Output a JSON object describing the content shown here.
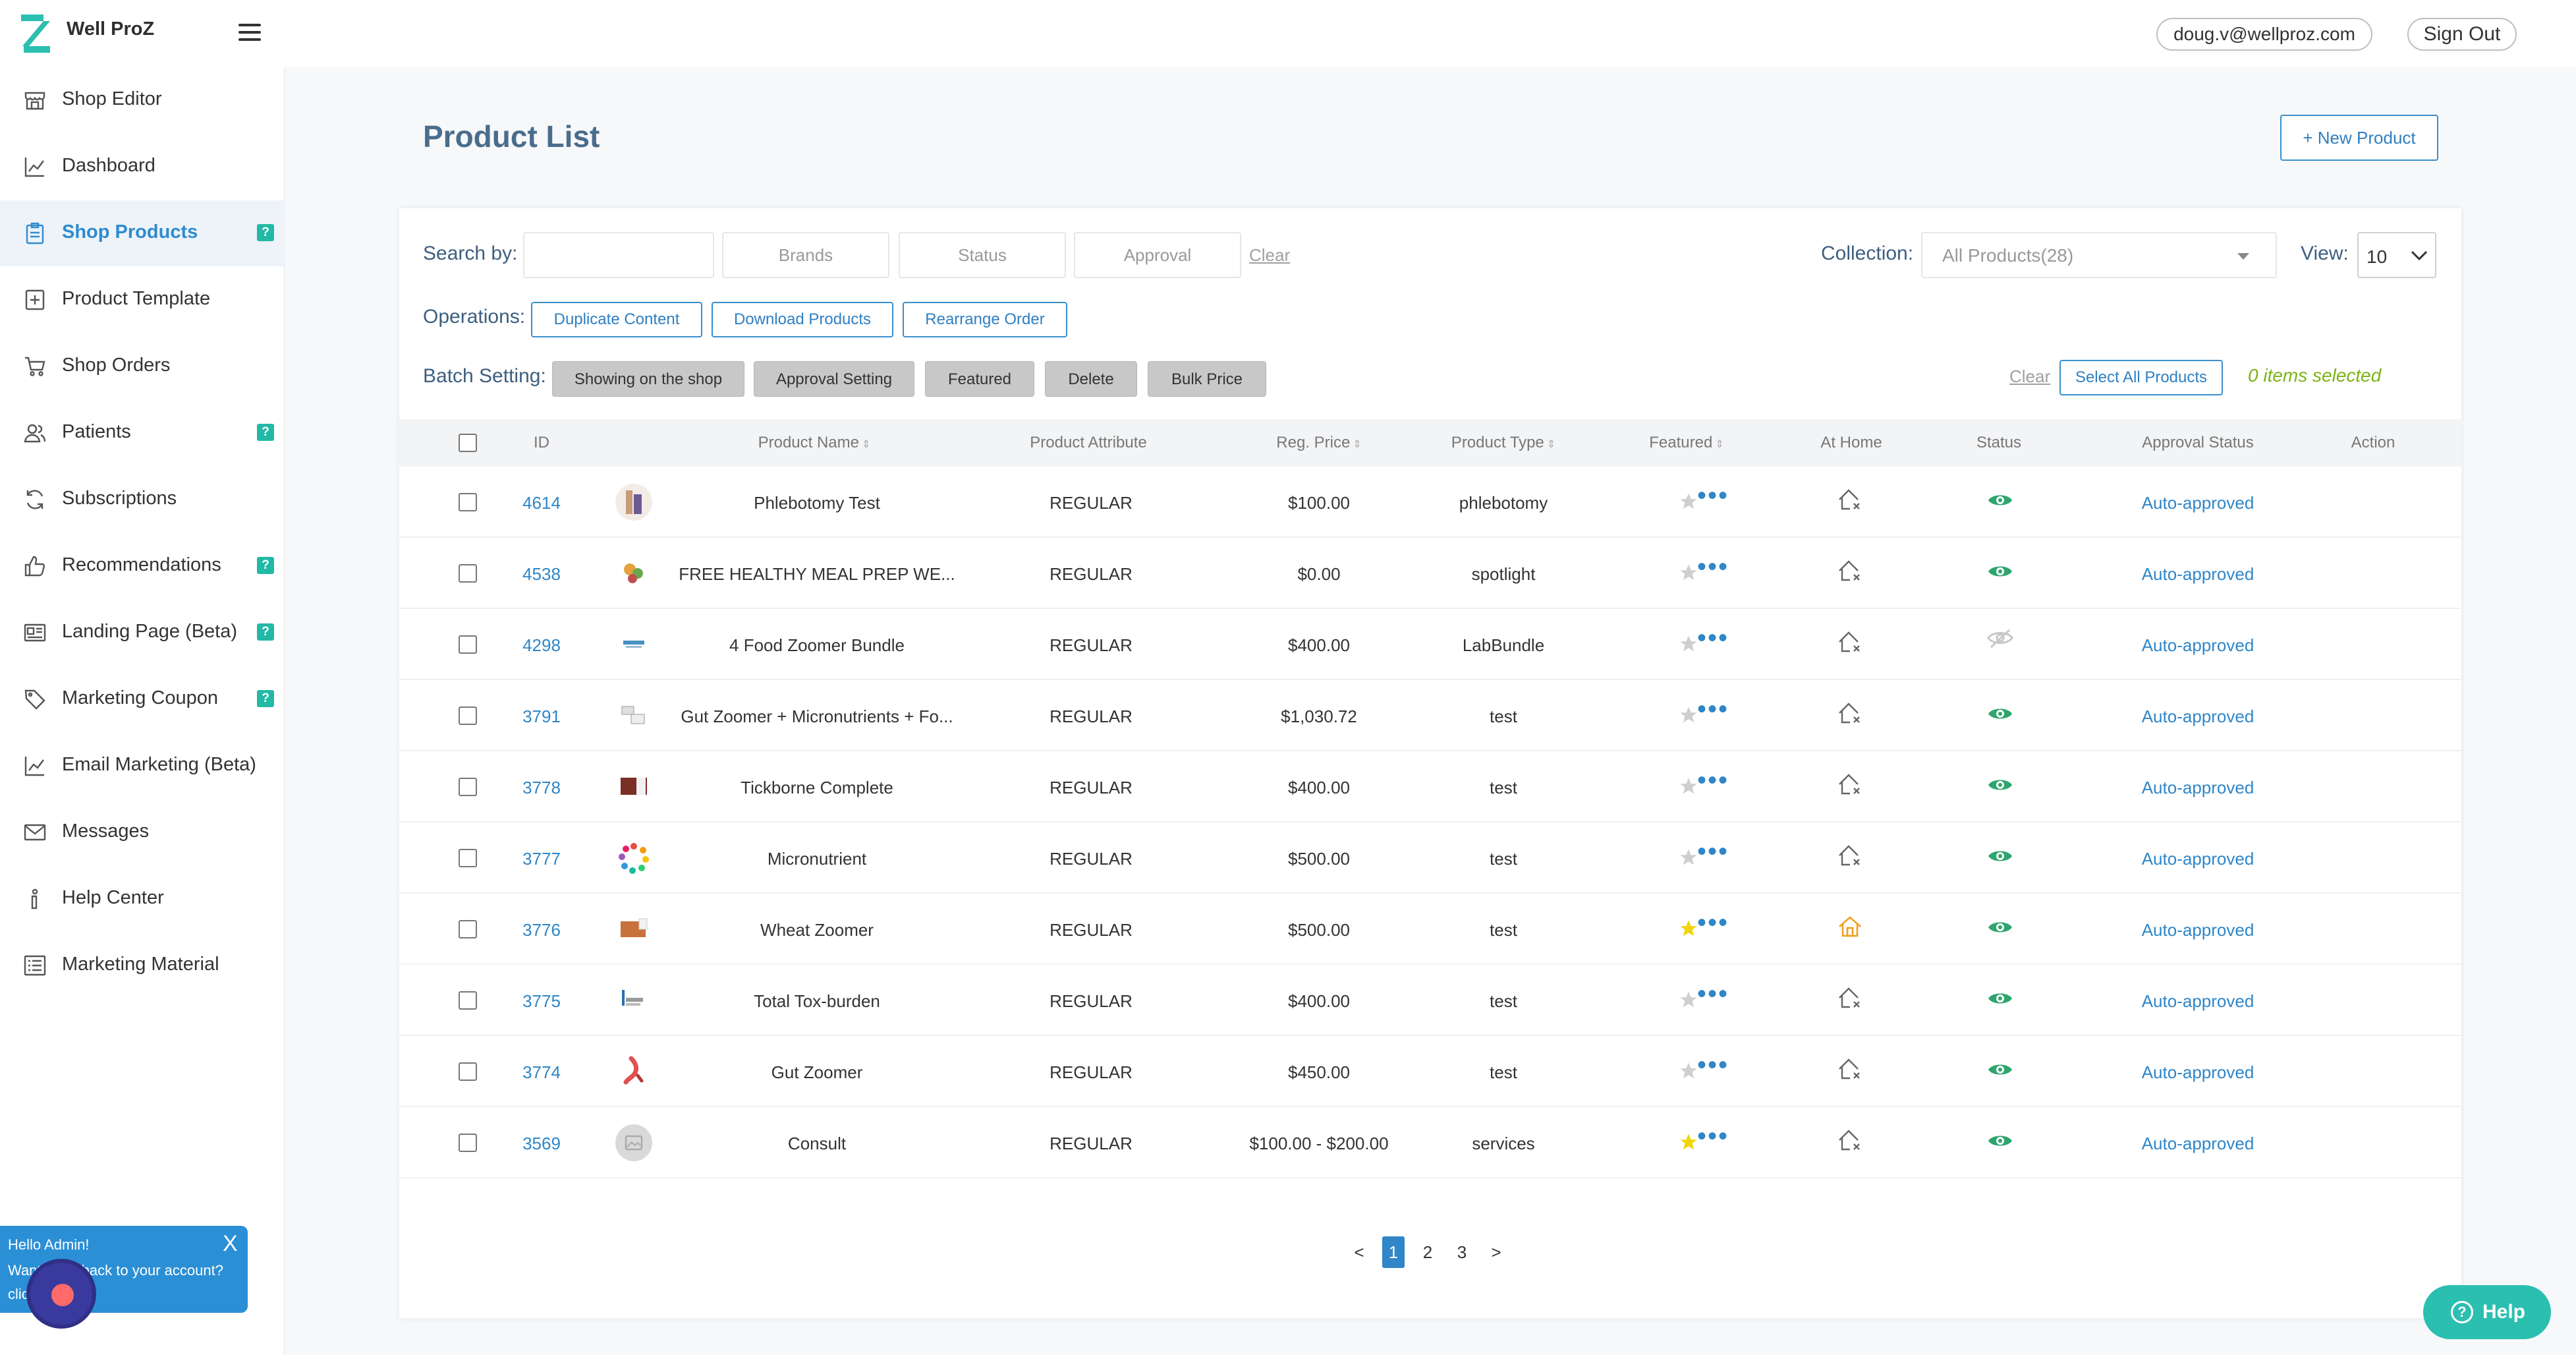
{
  "app": {
    "brand": "Well ProZ"
  },
  "header": {
    "user_email": "doug.v@wellproz.com",
    "sign_out": "Sign Out"
  },
  "sidebar": {
    "items": [
      {
        "label": "Shop Editor",
        "icon": "store-icon",
        "badge": ""
      },
      {
        "label": "Dashboard",
        "icon": "chart-icon",
        "badge": ""
      },
      {
        "label": "Shop Products",
        "icon": "clipboard-icon",
        "badge": "?",
        "active": true
      },
      {
        "label": "Product Template",
        "icon": "template-icon",
        "badge": ""
      },
      {
        "label": "Shop Orders",
        "icon": "cart-icon",
        "badge": ""
      },
      {
        "label": "Patients",
        "icon": "users-icon",
        "badge": "?"
      },
      {
        "label": "Subscriptions",
        "icon": "refresh-icon",
        "badge": ""
      },
      {
        "label": "Recommendations",
        "icon": "thumbs-up-icon",
        "badge": "?"
      },
      {
        "label": "Landing Page (Beta)",
        "icon": "landing-icon",
        "badge": "?"
      },
      {
        "label": "Marketing Coupon",
        "icon": "tag-icon",
        "badge": "?"
      },
      {
        "label": "Email Marketing (Beta)",
        "icon": "chart-icon",
        "badge": ""
      },
      {
        "label": "Messages",
        "icon": "mail-icon",
        "badge": ""
      },
      {
        "label": "Help Center",
        "icon": "help-icon",
        "badge": ""
      },
      {
        "label": "Marketing Material",
        "icon": "list-icon",
        "badge": ""
      }
    ]
  },
  "hello_popup": {
    "title": "Hello Admin!",
    "text": "Want to go back to your account? click here",
    "close": "X"
  },
  "main": {
    "title": "Product List",
    "new_product": "+ New Product",
    "search": {
      "label": "Search by:",
      "value": "",
      "brands": "Brands",
      "status": "Status",
      "approval": "Approval",
      "clear": "Clear"
    },
    "collection": {
      "label": "Collection:",
      "value": "All Products(28)"
    },
    "view": {
      "label": "View:",
      "value": "10"
    },
    "operations": {
      "label": "Operations:",
      "buttons": [
        "Duplicate Content",
        "Download Products",
        "Rearrange Order"
      ]
    },
    "batch": {
      "label": "Batch Setting:",
      "buttons": [
        "Showing on the shop",
        "Approval Setting",
        "Featured",
        "Delete",
        "Bulk Price"
      ],
      "clear": "Clear",
      "select_all": "Select All Products",
      "selected": "0 items selected"
    },
    "table": {
      "headers": {
        "id": "ID",
        "name": "Product Name",
        "attribute": "Product Attribute",
        "price": "Reg. Price",
        "type": "Product Type",
        "featured": "Featured",
        "home": "At Home",
        "status": "Status",
        "approval": "Approval Status",
        "action": "Action"
      },
      "rows": [
        {
          "id": "4614",
          "name": "Phlebotomy Test",
          "attribute": "REGULAR",
          "price": "$100.00",
          "type": "phlebotomy",
          "featured": false,
          "home": false,
          "visible": true,
          "approval": "Auto-approved"
        },
        {
          "id": "4538",
          "name": "FREE HEALTHY MEAL PREP WE...",
          "attribute": "REGULAR",
          "price": "$0.00",
          "type": "spotlight",
          "featured": false,
          "home": false,
          "visible": true,
          "approval": "Auto-approved"
        },
        {
          "id": "4298",
          "name": "4 Food Zoomer Bundle",
          "attribute": "REGULAR",
          "price": "$400.00",
          "type": "LabBundle",
          "featured": false,
          "home": false,
          "visible": false,
          "approval": "Auto-approved"
        },
        {
          "id": "3791",
          "name": "Gut Zoomer + Micronutrients + Fo...",
          "attribute": "REGULAR",
          "price": "$1,030.72",
          "type": "test",
          "featured": false,
          "home": false,
          "visible": true,
          "approval": "Auto-approved"
        },
        {
          "id": "3778",
          "name": "Tickborne Complete",
          "attribute": "REGULAR",
          "price": "$400.00",
          "type": "test",
          "featured": false,
          "home": false,
          "visible": true,
          "approval": "Auto-approved"
        },
        {
          "id": "3777",
          "name": "Micronutrient",
          "attribute": "REGULAR",
          "price": "$500.00",
          "type": "test",
          "featured": false,
          "home": false,
          "visible": true,
          "approval": "Auto-approved"
        },
        {
          "id": "3776",
          "name": "Wheat Zoomer",
          "attribute": "REGULAR",
          "price": "$500.00",
          "type": "test",
          "featured": true,
          "home": true,
          "visible": true,
          "approval": "Auto-approved"
        },
        {
          "id": "3775",
          "name": "Total Tox-burden",
          "attribute": "REGULAR",
          "price": "$400.00",
          "type": "test",
          "featured": false,
          "home": false,
          "visible": true,
          "approval": "Auto-approved"
        },
        {
          "id": "3774",
          "name": "Gut Zoomer",
          "attribute": "REGULAR",
          "price": "$450.00",
          "type": "test",
          "featured": false,
          "home": false,
          "visible": true,
          "approval": "Auto-approved"
        },
        {
          "id": "3569",
          "name": "Consult",
          "attribute": "REGULAR",
          "price": "$100.00 - $200.00",
          "type": "services",
          "featured": true,
          "home": false,
          "visible": true,
          "approval": "Auto-approved"
        }
      ]
    },
    "pagination": {
      "prev": "<",
      "pages": [
        "1",
        "2",
        "3"
      ],
      "current": "1",
      "next": ">"
    }
  },
  "help_button": "Help",
  "colors": {
    "accent": "#2f86c8",
    "teal": "#2bbfb0",
    "green": "#2ea56e",
    "star": "#f2d40c",
    "approved_green": "#7ab317"
  }
}
